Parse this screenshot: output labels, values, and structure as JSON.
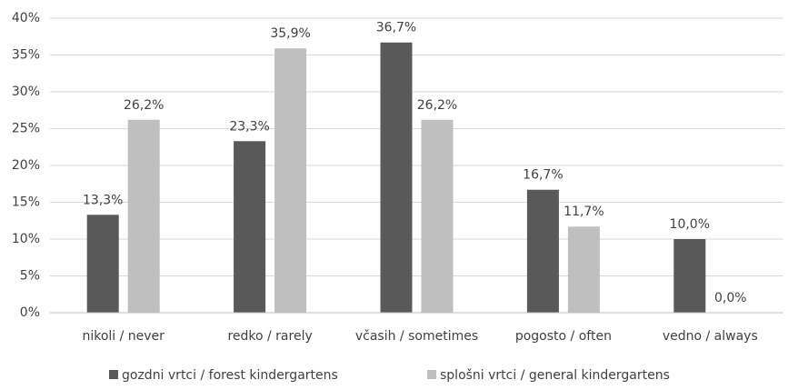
{
  "chart_data": {
    "type": "bar",
    "categories": [
      "nikoli / never",
      "redko / rarely",
      "včasih / sometimes",
      "pogosto / often",
      "vedno / always"
    ],
    "series": [
      {
        "name": "gozdni vrtci / forest kindergartens",
        "color": "#595959",
        "values": [
          13.3,
          23.3,
          36.7,
          16.7,
          10.0
        ],
        "value_labels": [
          "13,3%",
          "23,3%",
          "36,7%",
          "16,7%",
          "10,0%"
        ]
      },
      {
        "name": "splošni vrtci / general kindergartens",
        "color": "#bfbfbf",
        "values": [
          26.2,
          35.9,
          26.2,
          11.7,
          0.0
        ],
        "value_labels": [
          "26,2%",
          "35,9%",
          "26,2%",
          "11,7%",
          "0,0%"
        ]
      }
    ],
    "ylim": [
      0,
      40
    ],
    "yticks": [
      {
        "value": 0,
        "label": "0%"
      },
      {
        "value": 5,
        "label": "5%"
      },
      {
        "value": 10,
        "label": "10%"
      },
      {
        "value": 15,
        "label": "15%"
      },
      {
        "value": 20,
        "label": "20%"
      },
      {
        "value": 25,
        "label": "25%"
      },
      {
        "value": 30,
        "label": "30%"
      },
      {
        "value": 35,
        "label": "35%"
      },
      {
        "value": 40,
        "label": "40%"
      }
    ],
    "grid": true,
    "legend": "bottom"
  }
}
